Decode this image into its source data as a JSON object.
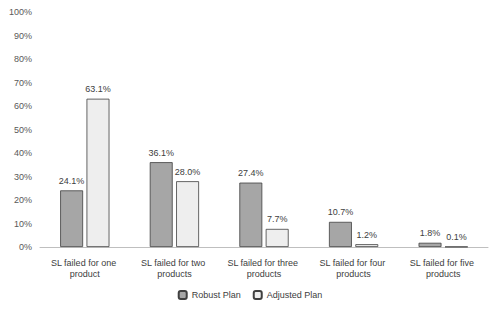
{
  "chart_data": {
    "type": "bar",
    "categories": [
      "SL failed for one product",
      "SL failed for two products",
      "SL failed for three products",
      "SL failed for four products",
      "SL failed for five products"
    ],
    "series": [
      {
        "name": "Robust Plan",
        "color": "#a6a6a6",
        "values": [
          24.1,
          36.1,
          27.4,
          10.7,
          1.8
        ],
        "value_labels": [
          "24.1%",
          "36.1%",
          "27.4%",
          "10.7%",
          "1.8%"
        ]
      },
      {
        "name": "Adjusted Plan",
        "color": "#eeeeee",
        "values": [
          63.1,
          28.0,
          7.7,
          1.2,
          0.1
        ],
        "value_labels": [
          "63.1%",
          "28.0%",
          "7.7%",
          "1.2%",
          "0.1%"
        ]
      }
    ],
    "ylim": [
      0,
      100
    ],
    "yticks": [
      {
        "value": 0,
        "label": "0%"
      },
      {
        "value": 10,
        "label": "10%"
      },
      {
        "value": 20,
        "label": "20%"
      },
      {
        "value": 30,
        "label": "30%"
      },
      {
        "value": 40,
        "label": "40%"
      },
      {
        "value": 50,
        "label": "50%"
      },
      {
        "value": 60,
        "label": "60%"
      },
      {
        "value": 70,
        "label": "70%"
      },
      {
        "value": 80,
        "label": "80%"
      },
      {
        "value": 90,
        "label": "90%"
      },
      {
        "value": 100,
        "label": "100%"
      }
    ],
    "grid": false,
    "legend": "bottom",
    "data_labels": true
  }
}
